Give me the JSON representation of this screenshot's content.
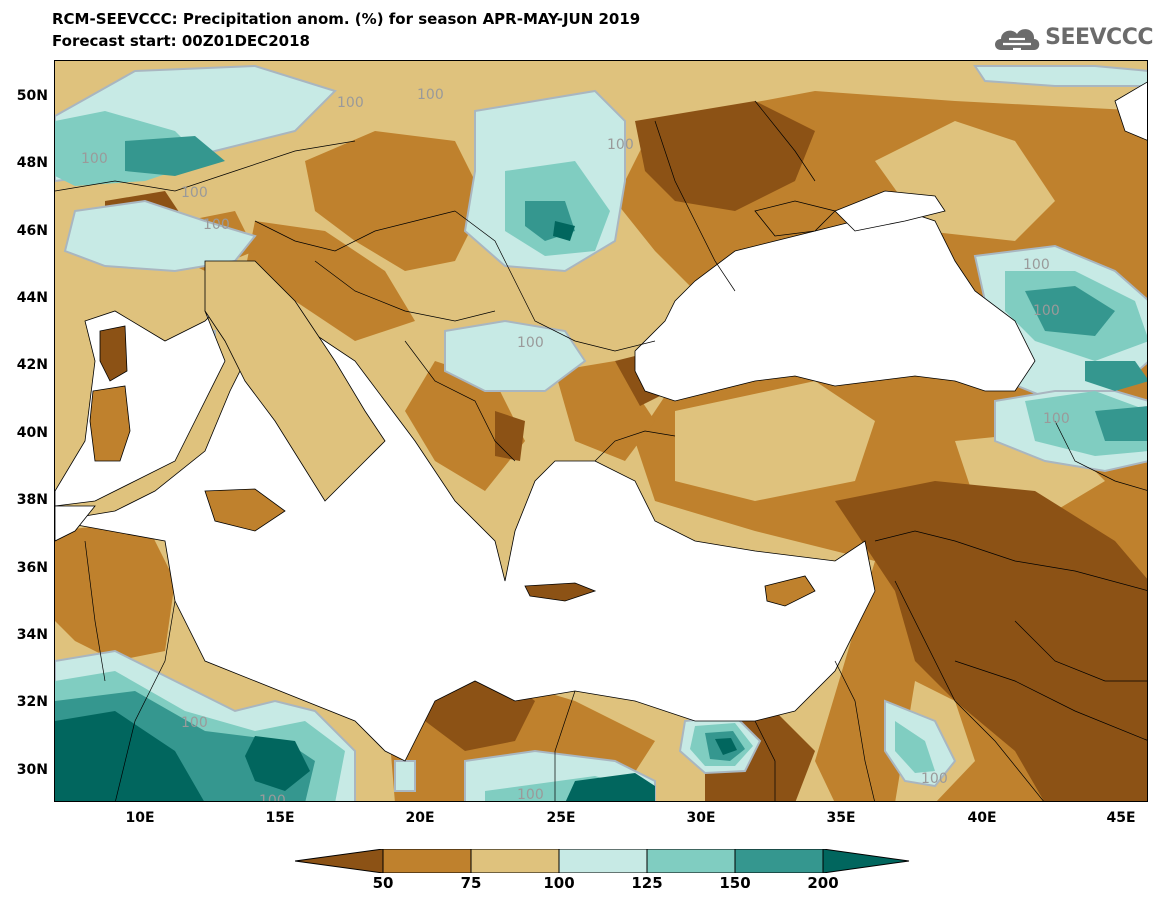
{
  "header": {
    "title_line1": "RCM-SEEVCCC: Precipitation anom. (%) for season APR-MAY-JUN 2019",
    "title_line2": "Forecast start: 00Z01DEC2018"
  },
  "logo": {
    "text": "SEEVCCC",
    "icon": "cloud-icon",
    "color": "#6b6b6b"
  },
  "map": {
    "lat_labels": [
      "50N",
      "48N",
      "46N",
      "44N",
      "42N",
      "40N",
      "38N",
      "36N",
      "34N",
      "32N",
      "30N"
    ],
    "lon_labels": [
      "10E",
      "15E",
      "20E",
      "25E",
      "30E",
      "35E",
      "40E",
      "45E"
    ],
    "contour_labels": [
      "100",
      "100",
      "100",
      "100",
      "100",
      "100",
      "100",
      "100",
      "100",
      "100",
      "100",
      "100",
      "100",
      "100"
    ],
    "colors": {
      "lt50": "#8c5215",
      "50_75": "#bf812d",
      "75_100": "#dfc27d",
      "100_125": "#c7eae5",
      "125_150": "#80cdc1",
      "150_200": "#35978f",
      "gt200": "#01665e",
      "sea": "#ffffff"
    }
  },
  "colorbar": {
    "labels": [
      "50",
      "75",
      "100",
      "125",
      "150",
      "200"
    ],
    "colors": [
      "#8c5215",
      "#bf812d",
      "#dfc27d",
      "#c7eae5",
      "#80cdc1",
      "#35978f",
      "#01665e"
    ]
  }
}
